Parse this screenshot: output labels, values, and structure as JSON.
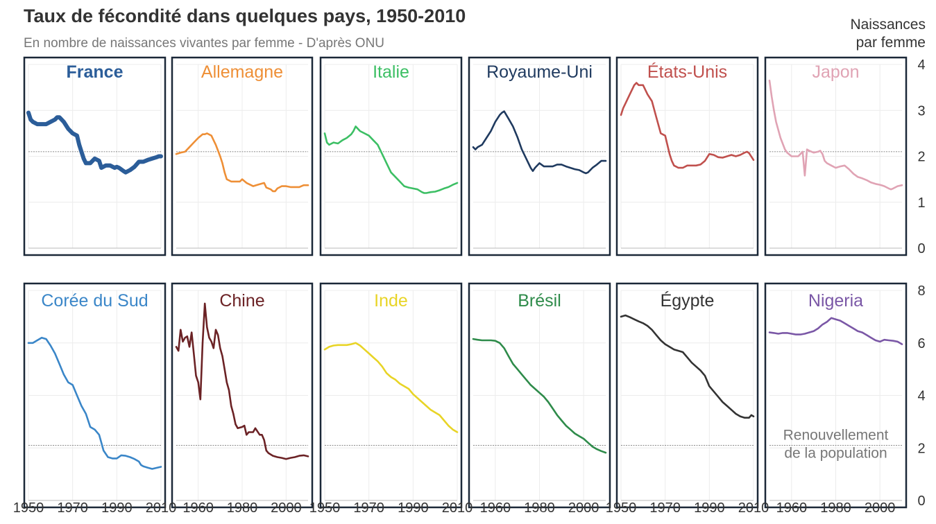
{
  "title": "Taux de fécondité dans quelques pays, 1950-2010",
  "subtitle": "En nombre de naissances vivantes par femme - D'après ONU",
  "y_axis_label": [
    "Naissances",
    "par femme"
  ],
  "chart_data": {
    "type": "line",
    "layout": "small-multiples",
    "ylabel": "Naissances par femme",
    "reference_line": {
      "value": 2.1,
      "label": [
        "Renouvellement",
        "de la population"
      ]
    },
    "rows": [
      {
        "ylim": [
          0,
          4
        ],
        "yticks": [
          0,
          1,
          2,
          3,
          4
        ]
      },
      {
        "ylim": [
          0,
          8
        ],
        "yticks": [
          0,
          2,
          4,
          6,
          8
        ]
      }
    ],
    "x_axes": [
      {
        "xlim": [
          1950,
          2010
        ],
        "ticks": [
          1950,
          1970,
          1990,
          2010
        ]
      },
      {
        "xlim": [
          1950,
          2010
        ],
        "ticks": [
          1960,
          1980,
          2000
        ]
      },
      {
        "xlim": [
          1950,
          2010
        ],
        "ticks": [
          1950,
          1970,
          1990,
          2010
        ]
      },
      {
        "xlim": [
          1950,
          2010
        ],
        "ticks": [
          1960,
          1980,
          2000
        ]
      },
      {
        "xlim": [
          1950,
          2010
        ],
        "ticks": [
          1950,
          1970,
          1990,
          2010
        ]
      },
      {
        "xlim": [
          1950,
          2010
        ],
        "ticks": [
          1960,
          1980,
          2000
        ]
      }
    ],
    "series": [
      {
        "name": "France",
        "color": "#2b5d99",
        "bold": true,
        "x": [
          1950,
          1951,
          1952,
          1954,
          1956,
          1958,
          1960,
          1962,
          1963,
          1964,
          1966,
          1968,
          1970,
          1972,
          1973,
          1974,
          1975,
          1976,
          1978,
          1980,
          1982,
          1983,
          1985,
          1987,
          1989,
          1990,
          1991,
          1993,
          1994,
          1996,
          1998,
          2000,
          2002,
          2004,
          2006,
          2008,
          2009,
          2010
        ],
        "y": [
          2.95,
          2.8,
          2.75,
          2.7,
          2.7,
          2.7,
          2.75,
          2.8,
          2.85,
          2.85,
          2.75,
          2.6,
          2.5,
          2.45,
          2.25,
          2.1,
          1.95,
          1.85,
          1.85,
          1.95,
          1.9,
          1.75,
          1.8,
          1.8,
          1.75,
          1.77,
          1.75,
          1.68,
          1.65,
          1.7,
          1.77,
          1.88,
          1.88,
          1.92,
          1.95,
          1.98,
          2.0,
          2.0
        ]
      },
      {
        "name": "Allemagne",
        "color": "#ee8f36",
        "x": [
          1950,
          1952,
          1954,
          1956,
          1958,
          1960,
          1962,
          1963,
          1964,
          1966,
          1967,
          1968,
          1970,
          1971,
          1972,
          1973,
          1975,
          1977,
          1979,
          1980,
          1982,
          1985,
          1987,
          1990,
          1991,
          1993,
          1994,
          1995,
          1996,
          1998,
          2000,
          2002,
          2004,
          2006,
          2008,
          2010
        ],
        "y": [
          2.05,
          2.08,
          2.1,
          2.2,
          2.3,
          2.4,
          2.48,
          2.48,
          2.5,
          2.45,
          2.35,
          2.25,
          2.0,
          1.85,
          1.65,
          1.5,
          1.45,
          1.45,
          1.45,
          1.5,
          1.42,
          1.35,
          1.38,
          1.42,
          1.32,
          1.28,
          1.24,
          1.24,
          1.3,
          1.35,
          1.35,
          1.33,
          1.33,
          1.33,
          1.37,
          1.37
        ]
      },
      {
        "name": "Italie",
        "color": "#3cbf64",
        "x": [
          1950,
          1951,
          1952,
          1954,
          1956,
          1958,
          1960,
          1962,
          1963,
          1964,
          1965,
          1966,
          1968,
          1970,
          1972,
          1974,
          1976,
          1978,
          1980,
          1982,
          1984,
          1986,
          1988,
          1990,
          1992,
          1994,
          1995,
          1996,
          1998,
          2000,
          2002,
          2004,
          2006,
          2008,
          2010
        ],
        "y": [
          2.5,
          2.3,
          2.25,
          2.3,
          2.28,
          2.35,
          2.4,
          2.48,
          2.55,
          2.65,
          2.6,
          2.55,
          2.5,
          2.45,
          2.35,
          2.25,
          2.05,
          1.85,
          1.65,
          1.55,
          1.45,
          1.35,
          1.32,
          1.3,
          1.28,
          1.22,
          1.2,
          1.2,
          1.22,
          1.23,
          1.26,
          1.3,
          1.33,
          1.38,
          1.42
        ]
      },
      {
        "name": "Royaume-Uni",
        "color": "#1f3a5f",
        "x": [
          1950,
          1951,
          1952,
          1954,
          1956,
          1958,
          1960,
          1962,
          1963,
          1964,
          1966,
          1968,
          1970,
          1972,
          1974,
          1976,
          1977,
          1978,
          1980,
          1982,
          1984,
          1986,
          1988,
          1990,
          1992,
          1994,
          1996,
          1998,
          2000,
          2001,
          2002,
          2004,
          2006,
          2008,
          2010
        ],
        "y": [
          2.2,
          2.15,
          2.2,
          2.25,
          2.4,
          2.55,
          2.75,
          2.9,
          2.95,
          2.98,
          2.82,
          2.65,
          2.42,
          2.15,
          1.95,
          1.75,
          1.68,
          1.75,
          1.85,
          1.78,
          1.78,
          1.78,
          1.82,
          1.82,
          1.78,
          1.75,
          1.72,
          1.7,
          1.65,
          1.63,
          1.65,
          1.75,
          1.82,
          1.9,
          1.9
        ]
      },
      {
        "name": "États-Unis",
        "color": "#c0504d",
        "x": [
          1950,
          1951,
          1952,
          1954,
          1956,
          1957,
          1958,
          1960,
          1961,
          1962,
          1964,
          1966,
          1968,
          1970,
          1972,
          1973,
          1974,
          1976,
          1978,
          1980,
          1982,
          1984,
          1986,
          1988,
          1990,
          1992,
          1994,
          1996,
          1998,
          2000,
          2002,
          2004,
          2006,
          2007,
          2008,
          2010
        ],
        "y": [
          2.9,
          3.05,
          3.15,
          3.35,
          3.55,
          3.6,
          3.55,
          3.55,
          3.45,
          3.35,
          3.2,
          2.85,
          2.5,
          2.45,
          2.05,
          1.9,
          1.8,
          1.75,
          1.75,
          1.8,
          1.8,
          1.8,
          1.82,
          1.9,
          2.05,
          2.03,
          1.98,
          1.97,
          2.0,
          2.03,
          2.0,
          2.03,
          2.08,
          2.1,
          2.07,
          1.92
        ]
      },
      {
        "name": "Japon",
        "color": "#e0a3b4",
        "x": [
          1950,
          1951,
          1952,
          1953,
          1955,
          1957,
          1958,
          1960,
          1962,
          1963,
          1964,
          1965,
          1966,
          1967,
          1968,
          1970,
          1972,
          1973,
          1974,
          1975,
          1976,
          1978,
          1980,
          1982,
          1984,
          1986,
          1988,
          1990,
          1992,
          1994,
          1996,
          1998,
          2000,
          2002,
          2004,
          2005,
          2006,
          2008,
          2010
        ],
        "y": [
          3.65,
          3.3,
          3.0,
          2.75,
          2.4,
          2.15,
          2.08,
          2.0,
          2.0,
          2.0,
          2.05,
          2.1,
          1.58,
          2.15,
          2.12,
          2.08,
          2.1,
          2.12,
          2.05,
          1.9,
          1.85,
          1.8,
          1.75,
          1.78,
          1.8,
          1.72,
          1.62,
          1.55,
          1.52,
          1.48,
          1.43,
          1.4,
          1.38,
          1.35,
          1.3,
          1.28,
          1.3,
          1.35,
          1.37
        ]
      },
      {
        "name": "Corée du Sud",
        "color": "#3a86c8",
        "x": [
          1950,
          1952,
          1954,
          1956,
          1958,
          1960,
          1962,
          1964,
          1966,
          1968,
          1970,
          1972,
          1974,
          1976,
          1978,
          1980,
          1982,
          1983,
          1984,
          1986,
          1988,
          1990,
          1992,
          1994,
          1996,
          1998,
          2000,
          2001,
          2002,
          2004,
          2006,
          2008,
          2010
        ],
        "y": [
          6.0,
          6.0,
          6.1,
          6.2,
          6.15,
          5.9,
          5.6,
          5.2,
          4.8,
          4.5,
          4.4,
          4.0,
          3.6,
          3.3,
          2.8,
          2.7,
          2.5,
          2.2,
          1.9,
          1.65,
          1.6,
          1.6,
          1.72,
          1.7,
          1.65,
          1.58,
          1.48,
          1.35,
          1.3,
          1.25,
          1.2,
          1.24,
          1.28
        ]
      },
      {
        "name": "Chine",
        "color": "#6b2225",
        "x": [
          1950,
          1951,
          1952,
          1953,
          1954,
          1955,
          1956,
          1957,
          1958,
          1959,
          1960,
          1961,
          1962,
          1963,
          1964,
          1965,
          1966,
          1967,
          1968,
          1969,
          1970,
          1971,
          1972,
          1973,
          1974,
          1975,
          1976,
          1977,
          1978,
          1980,
          1981,
          1982,
          1983,
          1984,
          1985,
          1986,
          1988,
          1989,
          1990,
          1991,
          1992,
          1994,
          1996,
          1998,
          2000,
          2002,
          2004,
          2006,
          2008,
          2010
        ],
        "y": [
          5.85,
          5.7,
          6.5,
          6.05,
          6.2,
          6.25,
          5.85,
          6.4,
          5.6,
          4.75,
          4.5,
          3.85,
          6.0,
          7.5,
          6.6,
          6.2,
          6.05,
          5.8,
          6.5,
          6.3,
          5.8,
          5.5,
          5.0,
          4.5,
          4.2,
          3.6,
          3.3,
          2.9,
          2.75,
          2.8,
          2.85,
          2.5,
          2.6,
          2.6,
          2.6,
          2.75,
          2.5,
          2.5,
          2.3,
          1.9,
          1.8,
          1.7,
          1.65,
          1.62,
          1.58,
          1.62,
          1.65,
          1.7,
          1.72,
          1.68
        ]
      },
      {
        "name": "Inde",
        "color": "#e8d426",
        "x": [
          1950,
          1952,
          1954,
          1956,
          1958,
          1960,
          1962,
          1964,
          1966,
          1968,
          1970,
          1972,
          1974,
          1976,
          1978,
          1980,
          1982,
          1984,
          1986,
          1988,
          1990,
          1992,
          1994,
          1996,
          1998,
          2000,
          2002,
          2004,
          2006,
          2008,
          2010
        ],
        "y": [
          5.75,
          5.85,
          5.9,
          5.92,
          5.92,
          5.92,
          5.95,
          6.0,
          5.9,
          5.75,
          5.6,
          5.45,
          5.3,
          5.1,
          4.85,
          4.7,
          4.6,
          4.45,
          4.35,
          4.25,
          4.05,
          3.9,
          3.75,
          3.6,
          3.45,
          3.35,
          3.25,
          3.05,
          2.85,
          2.7,
          2.6
        ]
      },
      {
        "name": "Brésil",
        "color": "#2e8b4a",
        "x": [
          1950,
          1952,
          1954,
          1956,
          1958,
          1960,
          1962,
          1964,
          1966,
          1968,
          1970,
          1972,
          1974,
          1976,
          1978,
          1980,
          1982,
          1984,
          1986,
          1988,
          1990,
          1992,
          1994,
          1996,
          1998,
          2000,
          2002,
          2004,
          2006,
          2008,
          2010
        ],
        "y": [
          6.15,
          6.12,
          6.1,
          6.1,
          6.1,
          6.08,
          6.0,
          5.8,
          5.5,
          5.2,
          5.0,
          4.8,
          4.6,
          4.4,
          4.25,
          4.1,
          3.95,
          3.75,
          3.5,
          3.25,
          3.05,
          2.85,
          2.7,
          2.55,
          2.45,
          2.35,
          2.2,
          2.05,
          1.95,
          1.88,
          1.82
        ]
      },
      {
        "name": "Égypte",
        "color": "#333333",
        "x": [
          1950,
          1952,
          1954,
          1956,
          1958,
          1960,
          1962,
          1964,
          1966,
          1968,
          1970,
          1972,
          1974,
          1976,
          1978,
          1980,
          1982,
          1984,
          1986,
          1988,
          1990,
          1992,
          1994,
          1996,
          1998,
          2000,
          2002,
          2004,
          2006,
          2008,
          2009,
          2010
        ],
        "y": [
          7.0,
          7.05,
          6.98,
          6.9,
          6.82,
          6.75,
          6.65,
          6.5,
          6.3,
          6.1,
          5.95,
          5.85,
          5.75,
          5.7,
          5.65,
          5.45,
          5.25,
          5.1,
          4.95,
          4.75,
          4.35,
          4.15,
          3.95,
          3.75,
          3.6,
          3.45,
          3.3,
          3.2,
          3.15,
          3.15,
          3.25,
          3.2
        ]
      },
      {
        "name": "Nigeria",
        "color": "#7a57a6",
        "x": [
          1950,
          1952,
          1954,
          1956,
          1958,
          1960,
          1962,
          1964,
          1966,
          1968,
          1970,
          1972,
          1974,
          1976,
          1978,
          1980,
          1982,
          1984,
          1986,
          1988,
          1990,
          1992,
          1994,
          1996,
          1998,
          2000,
          2002,
          2004,
          2006,
          2008,
          2010
        ],
        "y": [
          6.4,
          6.38,
          6.35,
          6.38,
          6.38,
          6.35,
          6.32,
          6.32,
          6.35,
          6.4,
          6.45,
          6.55,
          6.7,
          6.8,
          6.95,
          6.9,
          6.85,
          6.75,
          6.65,
          6.55,
          6.45,
          6.4,
          6.3,
          6.2,
          6.1,
          6.05,
          6.12,
          6.1,
          6.08,
          6.05,
          5.95
        ]
      }
    ]
  }
}
